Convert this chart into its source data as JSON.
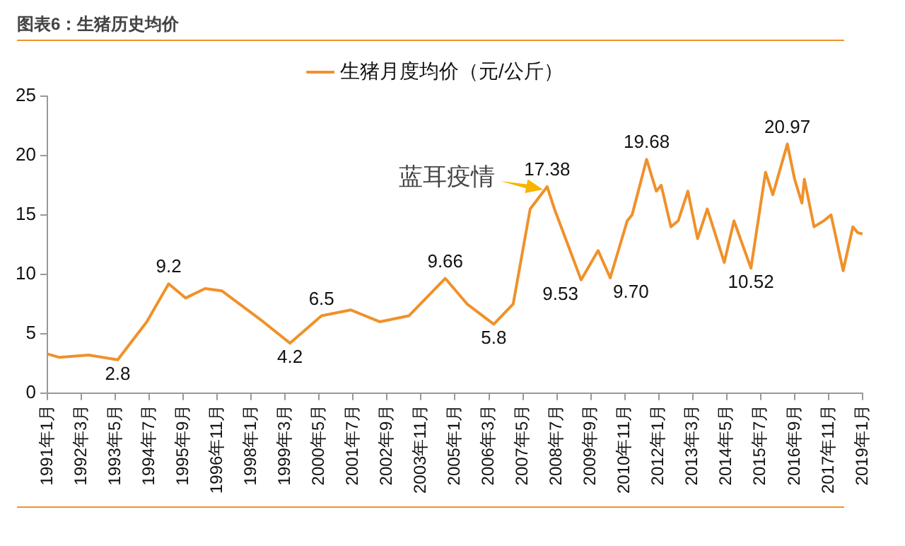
{
  "chart_data": {
    "type": "line",
    "title": "图表6：生猪历史均价",
    "legend": "top",
    "grid": false,
    "marker": "none",
    "line_style": "solid",
    "annotations": [
      {
        "text": "蓝耳疫情",
        "x": "2008-03",
        "y": 17.38
      }
    ],
    "ylim": [
      0,
      25
    ],
    "yticks": [
      0,
      5,
      10,
      15,
      20,
      25
    ],
    "xlim": [
      "1991-01",
      "2019-01"
    ],
    "xticks": [
      {
        "value": "1991-01",
        "label": "1991年1月"
      },
      {
        "value": "1992-03",
        "label": "1992年3月"
      },
      {
        "value": "1993-05",
        "label": "1993年5月"
      },
      {
        "value": "1994-07",
        "label": "1994年7月"
      },
      {
        "value": "1995-09",
        "label": "1995年9月"
      },
      {
        "value": "1996-11",
        "label": "1996年11月"
      },
      {
        "value": "1998-01",
        "label": "1998年1月"
      },
      {
        "value": "1999-03",
        "label": "1999年3月"
      },
      {
        "value": "2000-05",
        "label": "2000年5月"
      },
      {
        "value": "2001-07",
        "label": "2001年7月"
      },
      {
        "value": "2002-09",
        "label": "2002年9月"
      },
      {
        "value": "2003-11",
        "label": "2003年11月"
      },
      {
        "value": "2005-01",
        "label": "2005年1月"
      },
      {
        "value": "2006-03",
        "label": "2006年3月"
      },
      {
        "value": "2007-05",
        "label": "2007年5月"
      },
      {
        "value": "2008-07",
        "label": "2008年7月"
      },
      {
        "value": "2009-09",
        "label": "2009年9月"
      },
      {
        "value": "2010-11",
        "label": "2010年11月"
      },
      {
        "value": "2012-01",
        "label": "2012年1月"
      },
      {
        "value": "2013-03",
        "label": "2013年3月"
      },
      {
        "value": "2014-05",
        "label": "2014年5月"
      },
      {
        "value": "2015-07",
        "label": "2015年7月"
      },
      {
        "value": "2016-09",
        "label": "2016年9月"
      },
      {
        "value": "2017-11",
        "label": "2017年11月"
      },
      {
        "value": "2019-01",
        "label": "2019年1月"
      }
    ],
    "series": [
      {
        "name": "生猪月度均价（元/公斤）",
        "color": "#f0912a",
        "x": [
          "1991-01",
          "1991-06",
          "1992-06",
          "1993-06",
          "1994-06",
          "1995-03",
          "1995-10",
          "1996-06",
          "1997-01",
          "1998-06",
          "1999-05",
          "2000-06",
          "2001-06",
          "2002-06",
          "2003-06",
          "2004-09",
          "2005-06",
          "2006-05",
          "2007-01",
          "2007-08",
          "2008-03",
          "2008-06",
          "2009-05",
          "2009-12",
          "2010-05",
          "2010-12",
          "2011-02",
          "2011-08",
          "2011-12",
          "2012-02",
          "2012-06",
          "2012-09",
          "2013-01",
          "2013-05",
          "2013-09",
          "2014-04",
          "2014-08",
          "2015-03",
          "2015-09",
          "2015-12",
          "2016-06",
          "2016-09",
          "2016-12",
          "2017-01",
          "2017-05",
          "2017-09",
          "2017-12",
          "2018-05",
          "2018-09",
          "2018-11",
          "2019-01"
        ],
        "values": [
          3.3,
          3.0,
          3.2,
          2.8,
          6.0,
          9.2,
          8.0,
          8.8,
          8.6,
          6.0,
          4.2,
          6.5,
          7.0,
          6.0,
          6.5,
          9.66,
          7.5,
          5.8,
          7.5,
          15.5,
          17.38,
          15.5,
          9.53,
          12.0,
          9.7,
          14.5,
          15.0,
          19.68,
          17.0,
          17.5,
          14.0,
          14.5,
          17.0,
          13.0,
          15.5,
          11.0,
          14.5,
          10.52,
          18.6,
          16.7,
          20.97,
          18.0,
          16.0,
          18.0,
          14.0,
          14.5,
          15.0,
          10.3,
          14.0,
          13.5,
          13.4
        ],
        "value_labels": [
          null,
          null,
          null,
          "2.8",
          null,
          "9.2",
          null,
          null,
          null,
          null,
          "4.2",
          "6.5",
          null,
          null,
          null,
          "9.66",
          null,
          "5.8",
          null,
          null,
          "17.38",
          null,
          "9.53",
          null,
          "9.70",
          null,
          null,
          "19.68",
          null,
          null,
          null,
          null,
          null,
          null,
          null,
          null,
          null,
          "10.52",
          null,
          null,
          "20.97",
          null,
          null,
          null,
          null,
          null,
          null,
          null,
          null,
          null,
          null
        ]
      }
    ]
  }
}
